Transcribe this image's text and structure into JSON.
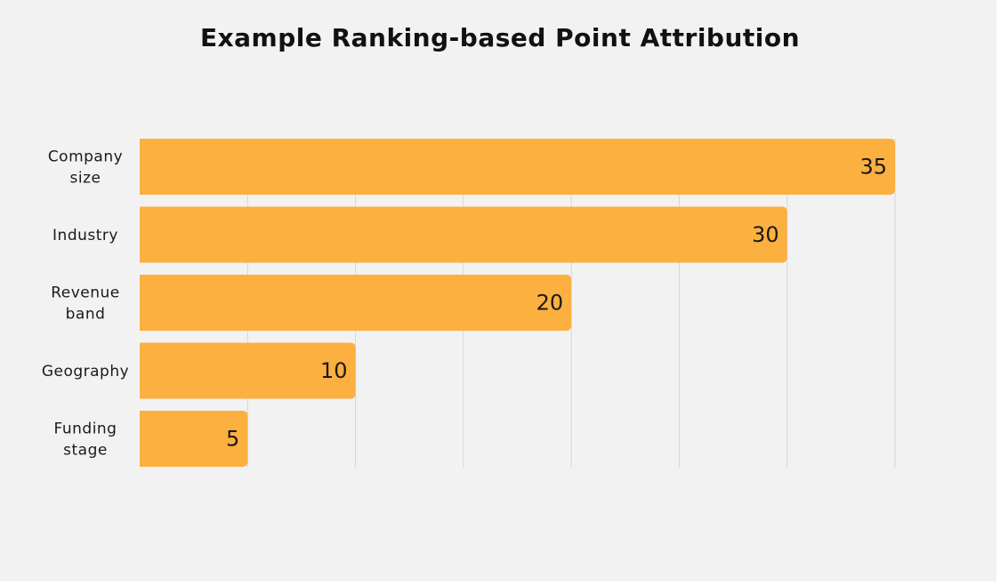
{
  "colors": {
    "background": "#f2f2f2",
    "bar": "#fbb040",
    "grid": "#d6d6d6",
    "text": "#1a1a1a"
  },
  "chart_data": {
    "type": "bar",
    "orientation": "horizontal",
    "title": "Example Ranking-based Point Attribution",
    "categories": [
      [
        "Company",
        "size"
      ],
      [
        "Industry"
      ],
      [
        "Revenue",
        "band"
      ],
      [
        "Geography"
      ],
      [
        "Funding",
        "stage"
      ]
    ],
    "values": [
      35,
      30,
      20,
      10,
      5
    ],
    "xlim": [
      0,
      35
    ],
    "x_tick_step": 5,
    "grid": true,
    "data_labels": true,
    "legend": "none"
  }
}
